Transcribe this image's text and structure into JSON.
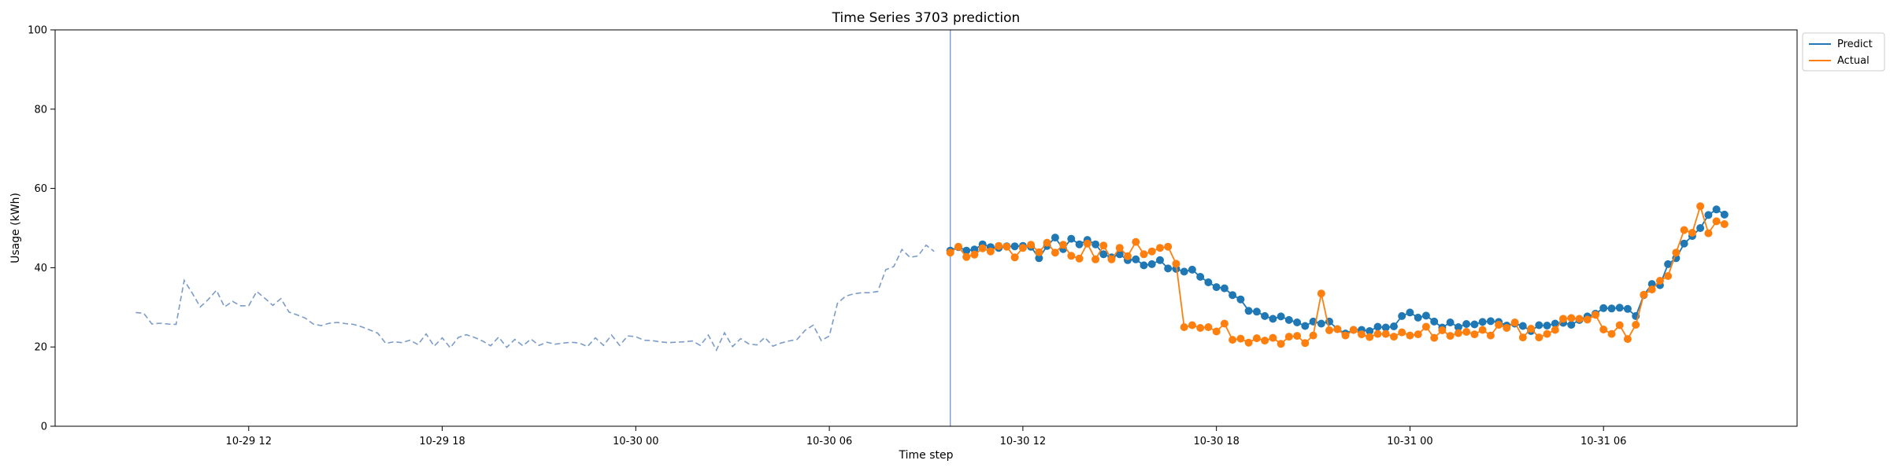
{
  "chart_data": {
    "type": "line",
    "title": "Time Series 3703 prediction",
    "xlabel": "Time step",
    "ylabel": "Usage (kWh)",
    "ylim": [
      0,
      100
    ],
    "yticks": [
      0,
      20,
      40,
      60,
      80,
      100
    ],
    "xlim": [
      "2023-10-29 06:00",
      "2023-10-31 12:00"
    ],
    "xticks": [
      {
        "value": "2023-10-29 12:00",
        "label": "10-29 12"
      },
      {
        "value": "2023-10-29 18:00",
        "label": "10-29 18"
      },
      {
        "value": "2023-10-30 00:00",
        "label": "10-30 00"
      },
      {
        "value": "2023-10-30 06:00",
        "label": "10-30 06"
      },
      {
        "value": "2023-10-30 12:00",
        "label": "10-30 12"
      },
      {
        "value": "2023-10-30 18:00",
        "label": "10-30 18"
      },
      {
        "value": "2023-10-31 00:00",
        "label": "10-31 00"
      },
      {
        "value": "2023-10-31 06:00",
        "label": "10-31 06"
      }
    ],
    "forecast_start": "2023-10-30 09:45",
    "grid": false,
    "legend_position": "outside-top-right",
    "colors": {
      "history": "#7b9cc8",
      "predict": "#1f77b4",
      "actual": "#ff7f0e",
      "divider": "#7b9cc8"
    },
    "history": {
      "start": "2023-10-29 08:30",
      "step_minutes": 15,
      "style": "dashed",
      "values": [
        28.7,
        28.5,
        25.8,
        26.0,
        25.8,
        25.7,
        36.8,
        33.6,
        30.1,
        32.0,
        34.3,
        30.1,
        31.5,
        30.4,
        30.4,
        34.0,
        32.3,
        30.5,
        32.2,
        28.8,
        28.1,
        27.3,
        25.8,
        25.4,
        26.0,
        26.2,
        25.9,
        25.7,
        25.1,
        24.3,
        23.5,
        20.9,
        21.3,
        21.1,
        21.7,
        20.6,
        23.3,
        20.2,
        22.3,
        19.8,
        22.4,
        23.1,
        22.4,
        21.5,
        20.3,
        22.5,
        19.9,
        21.9,
        20.3,
        22.0,
        20.4,
        21.2,
        20.7,
        21.0,
        21.2,
        21.0,
        20.1,
        22.3,
        20.4,
        23.0,
        20.4,
        22.8,
        22.6,
        21.7,
        21.6,
        21.3,
        21.1,
        21.2,
        21.3,
        21.5,
        20.4,
        23.0,
        19.2,
        23.6,
        20.1,
        22.1,
        20.8,
        20.5,
        22.4,
        20.2,
        21.0,
        21.5,
        21.9,
        24.2,
        25.5,
        21.6,
        22.8,
        31.0,
        32.8,
        33.4,
        33.7,
        33.7,
        34.0,
        39.5,
        40.3,
        44.6,
        42.6,
        43.0,
        45.7,
        44.1
      ]
    },
    "series": [
      {
        "name": "Predict",
        "start": "2023-10-30 09:45",
        "step_minutes": 15,
        "marker": "circle",
        "values": [
          44.3,
          45.2,
          44.3,
          44.6,
          45.9,
          45.2,
          45.0,
          45.4,
          45.4,
          45.5,
          45.3,
          42.4,
          45.5,
          47.6,
          44.7,
          47.3,
          45.9,
          47.0,
          45.9,
          43.4,
          42.6,
          43.4,
          41.9,
          42.1,
          40.6,
          40.9,
          41.9,
          39.8,
          39.7,
          39.0,
          39.5,
          37.7,
          36.3,
          35.1,
          34.8,
          33.1,
          32.0,
          29.1,
          28.9,
          27.8,
          27.1,
          27.7,
          26.8,
          26.2,
          25.3,
          26.4,
          25.9,
          26.4,
          24.5,
          23.4,
          24.3,
          24.3,
          24.0,
          25.1,
          24.9,
          25.2,
          27.8,
          28.7,
          27.4,
          27.9,
          26.4,
          24.9,
          26.2,
          25.0,
          25.8,
          25.7,
          26.3,
          26.5,
          26.3,
          25.4,
          25.9,
          25.3,
          24.0,
          25.5,
          25.4,
          25.9,
          26.1,
          25.6,
          26.8,
          27.7,
          28.4,
          29.8,
          29.7,
          29.9,
          29.6,
          27.8,
          33.1,
          35.9,
          35.6,
          40.9,
          42.4,
          46.1,
          48.0,
          50.0,
          53.3,
          54.7,
          53.4
        ]
      },
      {
        "name": "Actual",
        "start": "2023-10-30 09:45",
        "step_minutes": 15,
        "marker": "circle",
        "values": [
          43.8,
          45.3,
          42.7,
          43.3,
          44.9,
          44.1,
          45.5,
          45.3,
          42.6,
          45.0,
          45.8,
          43.9,
          46.3,
          43.8,
          45.8,
          43.0,
          42.3,
          46.1,
          42.1,
          45.6,
          42.1,
          45.0,
          42.9,
          46.5,
          43.4,
          44.1,
          45.0,
          45.3,
          41.0,
          25.0,
          25.5,
          24.8,
          25.0,
          23.9,
          25.9,
          21.8,
          22.1,
          21.1,
          22.2,
          21.6,
          22.3,
          20.8,
          22.6,
          22.8,
          21.0,
          22.9,
          33.5,
          24.2,
          24.5,
          22.9,
          24.3,
          23.2,
          22.5,
          23.3,
          23.3,
          22.6,
          23.7,
          22.9,
          23.2,
          25.1,
          22.3,
          24.2,
          22.8,
          23.5,
          23.8,
          23.2,
          24.3,
          22.9,
          25.6,
          24.8,
          26.2,
          22.4,
          24.6,
          22.4,
          23.3,
          24.3,
          27.1,
          27.3,
          27.1,
          26.9,
          28.1,
          24.4,
          23.3,
          25.5,
          22.0,
          25.6,
          33.2,
          34.5,
          36.7,
          37.9,
          43.8,
          49.5,
          48.8,
          55.5,
          48.7,
          51.7,
          51.0
        ]
      }
    ]
  }
}
